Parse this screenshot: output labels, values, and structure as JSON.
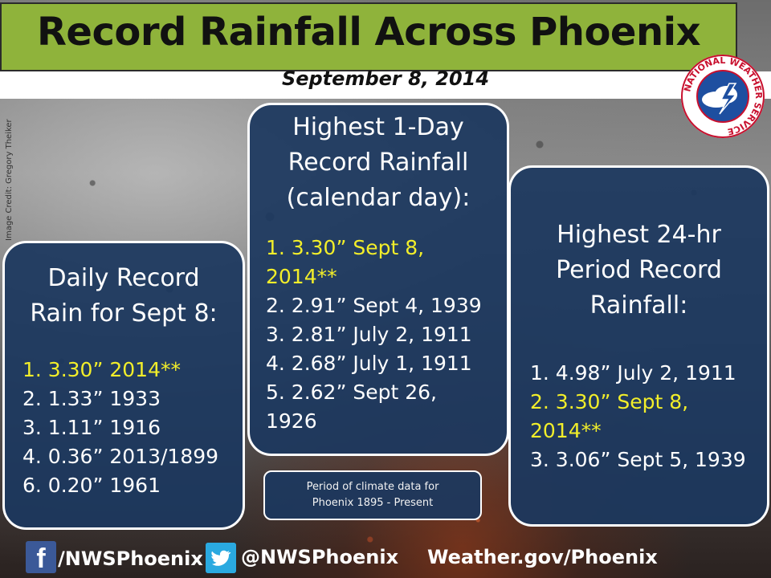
{
  "header": {
    "title": "Record Rainfall Across Phoenix",
    "subtitle": "September 8, 2014",
    "logo_text": "NATIONAL WEATHER SERVICE"
  },
  "image_credit": "Image Credit: Gregory Theiker",
  "panels": {
    "daily": {
      "heading_lines": [
        "Daily Record",
        "Rain for Sept 8:"
      ],
      "items": [
        {
          "text": "1. 3.30” 2014**",
          "highlight": true
        },
        {
          "text": "2. 1.33”  1933",
          "highlight": false
        },
        {
          "text": "3. 1.11”  1916",
          "highlight": false
        },
        {
          "text": "4. 0.36”  2013/1899",
          "highlight": false
        },
        {
          "text": "6. 0.20”  1961",
          "highlight": false
        }
      ]
    },
    "one_day": {
      "heading_lines": [
        "Highest 1-Day",
        "Record Rainfall",
        "(calendar day):"
      ],
      "items": [
        {
          "text": "1. 3.30” Sept 8,",
          "highlight": true
        },
        {
          "text": "2014**",
          "highlight": true
        },
        {
          "text": "2. 2.91”  Sept 4, 1939",
          "highlight": false
        },
        {
          "text": "3. 2.81”  July 2, 1911",
          "highlight": false
        },
        {
          "text": "4. 2.68”  July 1, 1911",
          "highlight": false
        },
        {
          "text": "5. 2.62”  Sept 26,",
          "highlight": false
        },
        {
          "text": "1926",
          "highlight": false
        }
      ]
    },
    "period_24hr": {
      "heading_lines": [
        "Highest 24-hr",
        "Period Record",
        "Rainfall:"
      ],
      "items": [
        {
          "text": "1. 4.98”  July 2, 1911",
          "highlight": false
        },
        {
          "text": "2. 3.30” Sept 8,",
          "highlight": true
        },
        {
          "text": "2014**",
          "highlight": true
        },
        {
          "text": "3. 3.06”  Sept 5, 1939",
          "highlight": false
        }
      ]
    }
  },
  "note": {
    "lines": [
      "Period of climate data for",
      "Phoenix 1895 - Present"
    ]
  },
  "footer": {
    "facebook": "/NWSPhoenix",
    "twitter": "@NWSPhoenix",
    "website": "Weather.gov/Phoenix"
  },
  "colors": {
    "title_bar": "#8fb33b",
    "panel_bg": "#1c385f",
    "highlight": "#f2ee2a",
    "facebook": "#3b5998",
    "twitter": "#2aa9e0"
  }
}
